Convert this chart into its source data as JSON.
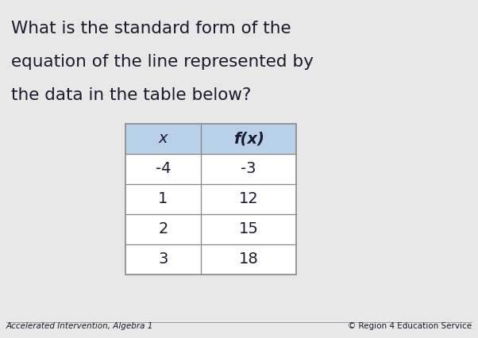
{
  "title_line1": "What is the standard form of the",
  "title_line2": "equation of the line represented by",
  "title_line3": "the data in the table below?",
  "footer_left": "Accelerated Intervention, Algebra 1",
  "footer_right": "© Region 4 Education Service",
  "col_headers": [
    "x",
    "f(x)"
  ],
  "table_data": [
    [
      "-4",
      "-3"
    ],
    [
      "1",
      "12"
    ],
    [
      "2",
      "15"
    ],
    [
      "3",
      "18"
    ]
  ],
  "header_bg_color": "#b8d0e8",
  "table_border_color": "#888888",
  "bg_color": "#e8e8e8",
  "text_color": "#1a1a2e",
  "title_fontsize": 15.5,
  "table_fontsize": 14,
  "footer_fontsize": 7.5
}
